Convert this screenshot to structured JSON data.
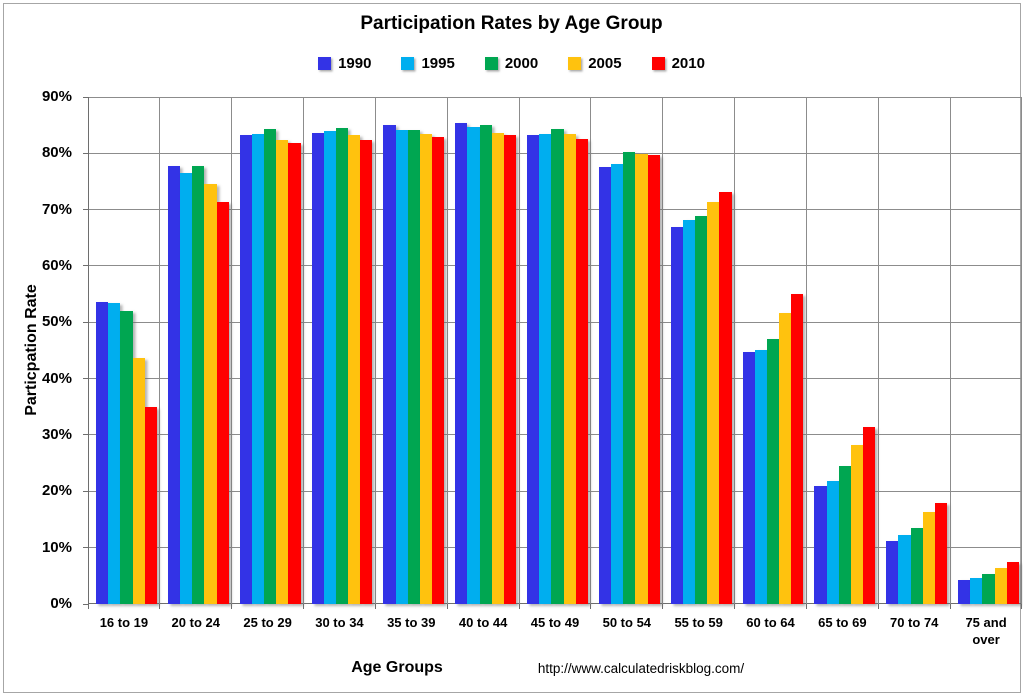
{
  "page": {
    "footer_url": "http://www.calculatedriskblog.com/"
  },
  "chart_data": {
    "type": "bar",
    "title": "Participation Rates by Age Group",
    "xlabel": "Age Groups",
    "ylabel": "Particpation Rate",
    "ylim": [
      0,
      90
    ],
    "y_tick_step": 10,
    "y_tick_labels": [
      "90%",
      "80%",
      "70%",
      "60%",
      "50%",
      "40%",
      "30%",
      "20%",
      "10%",
      "0%"
    ],
    "grid": true,
    "legend_position": "top",
    "categories": [
      "16 to 19",
      "20 to 24",
      "25 to 29",
      "30 to 34",
      "35 to 39",
      "40 to 44",
      "45 to 49",
      "50 to 54",
      "55 to 59",
      "60 to 64",
      "65 to 69",
      "70 to 74",
      "75 and over"
    ],
    "series": [
      {
        "name": "1990",
        "color": "#3333E6",
        "values": [
          53.7,
          77.8,
          83.3,
          83.7,
          85.0,
          85.4,
          83.2,
          77.6,
          67.0,
          44.8,
          21.0,
          11.2,
          4.3
        ]
      },
      {
        "name": "1995",
        "color": "#00AEEF",
        "values": [
          53.5,
          76.6,
          83.4,
          84.0,
          84.1,
          84.6,
          83.5,
          78.1,
          68.1,
          45.1,
          21.8,
          12.2,
          4.7
        ]
      },
      {
        "name": "2000",
        "color": "#00A651",
        "values": [
          52.0,
          77.8,
          84.4,
          84.5,
          84.2,
          85.1,
          84.4,
          80.3,
          68.9,
          47.1,
          24.5,
          13.5,
          5.3
        ]
      },
      {
        "name": "2005",
        "color": "#FFC20E",
        "values": [
          43.7,
          74.6,
          82.4,
          83.2,
          83.4,
          83.7,
          83.4,
          79.8,
          71.4,
          51.7,
          28.3,
          16.4,
          6.4
        ]
      },
      {
        "name": "2010",
        "color": "#FF0000",
        "values": [
          34.9,
          71.4,
          81.8,
          82.4,
          82.9,
          83.2,
          82.5,
          79.7,
          73.2,
          55.1,
          31.5,
          17.9,
          7.4
        ]
      }
    ]
  }
}
